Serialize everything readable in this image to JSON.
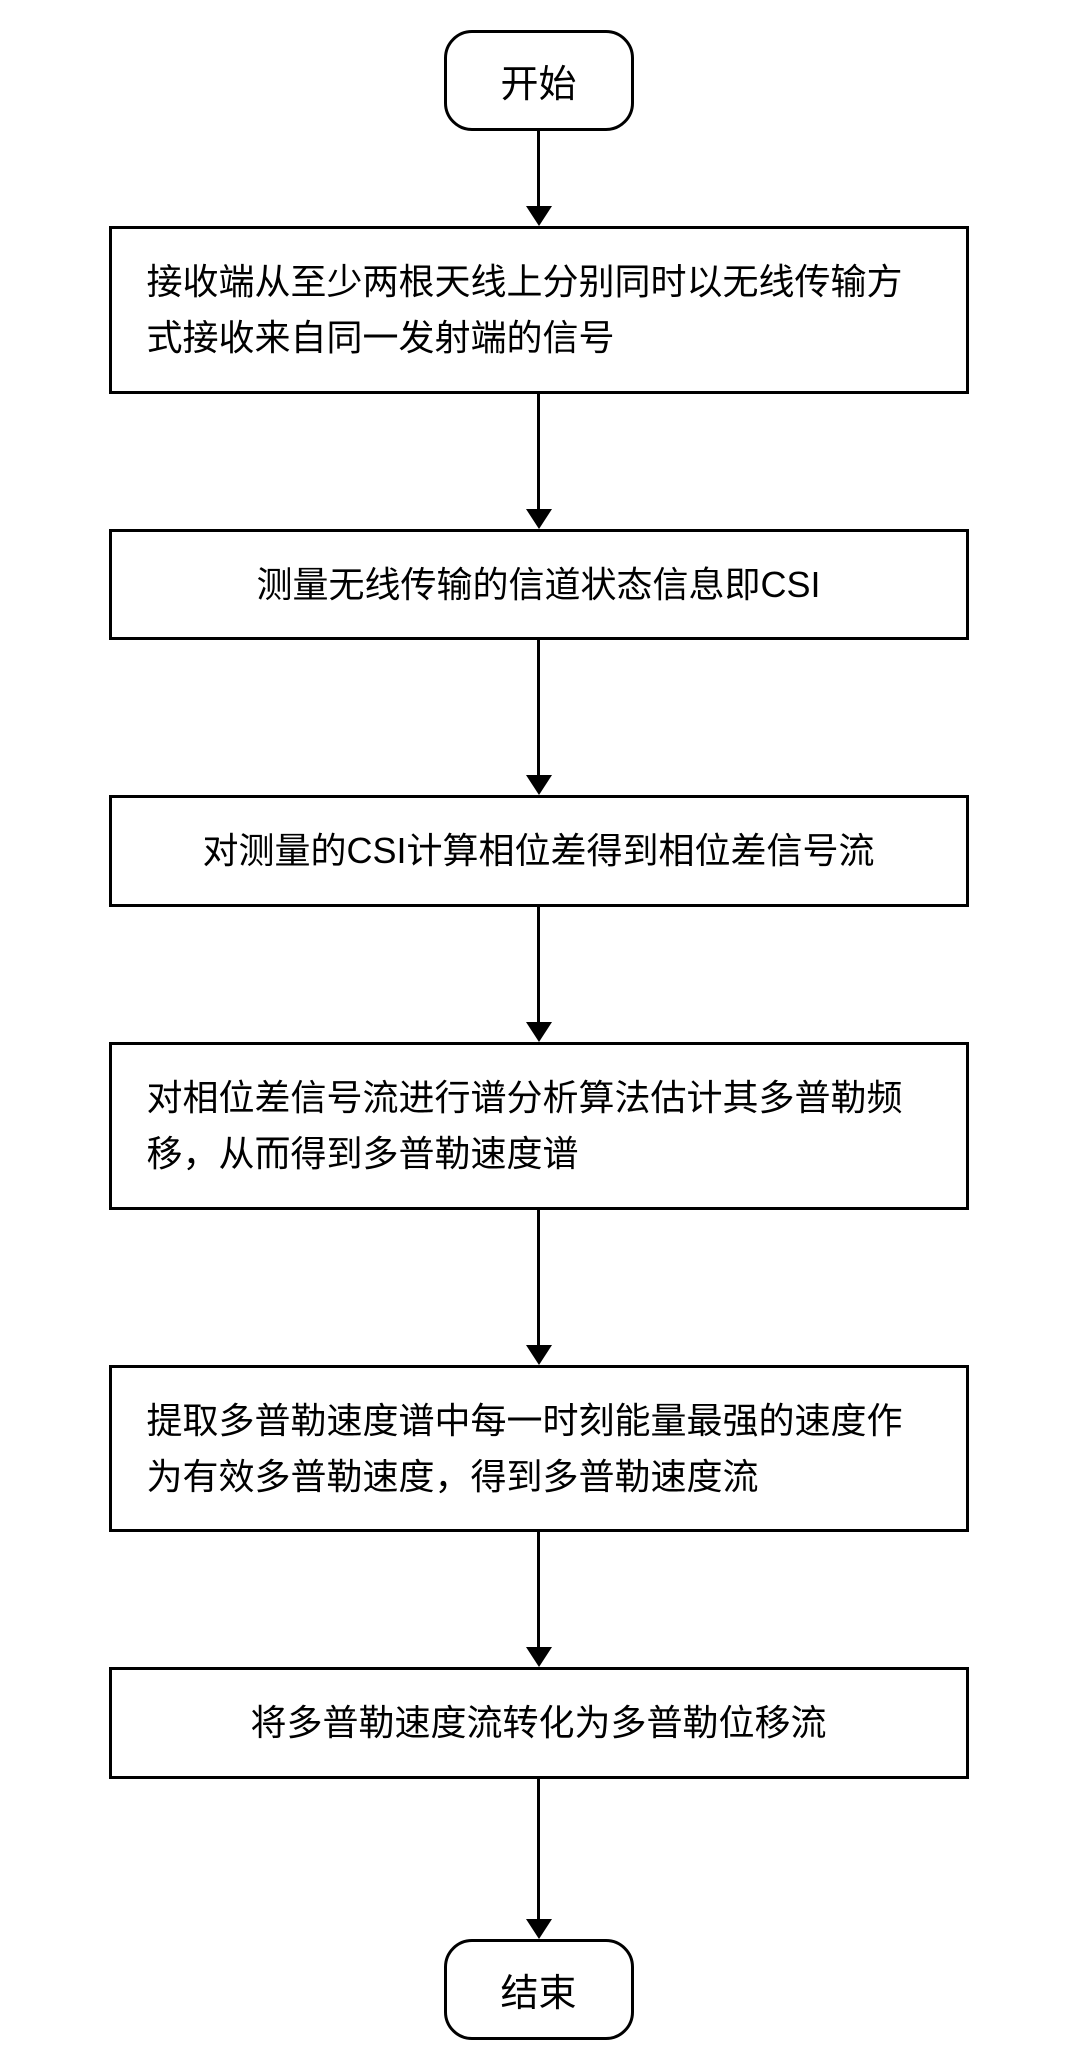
{
  "flowchart": {
    "type": "flowchart",
    "background_color": "#ffffff",
    "border_color": "#000000",
    "border_width": 3,
    "text_color": "#000000",
    "node_fontsize": 36,
    "terminal_fontsize": 38,
    "terminal_width": 190,
    "terminal_height": 90,
    "terminal_border_radius": 28,
    "process_width": 860,
    "arrow_line_width": 3,
    "arrow_head_width": 26,
    "arrow_head_height": 20,
    "nodes": [
      {
        "id": "start",
        "type": "terminal",
        "label": "开始"
      },
      {
        "id": "step1",
        "type": "process",
        "label": "接收端从至少两根天线上分别同时以无线传输方式接收来自同一发射端的信号"
      },
      {
        "id": "step2",
        "type": "process",
        "label": "测量无线传输的信道状态信息即CSI"
      },
      {
        "id": "step3",
        "type": "process",
        "label": "对测量的CSI计算相位差得到相位差信号流"
      },
      {
        "id": "step4",
        "type": "process",
        "label": "对相位差信号流进行谱分析算法估计其多普勒频移，从而得到多普勒速度谱"
      },
      {
        "id": "step5",
        "type": "process",
        "label": "提取多普勒速度谱中每一时刻能量最强的速度作为有效多普勒速度，得到多普勒速度流"
      },
      {
        "id": "step6",
        "type": "process",
        "label": "将多普勒速度流转化为多普勒位移流"
      },
      {
        "id": "end",
        "type": "terminal",
        "label": "结束"
      }
    ],
    "edges": [
      {
        "from": "start",
        "to": "step1",
        "length": 75
      },
      {
        "from": "step1",
        "to": "step2",
        "length": 115
      },
      {
        "from": "step2",
        "to": "step3",
        "length": 135
      },
      {
        "from": "step3",
        "to": "step4",
        "length": 115
      },
      {
        "from": "step4",
        "to": "step5",
        "length": 135
      },
      {
        "from": "step5",
        "to": "step6",
        "length": 115
      },
      {
        "from": "step6",
        "to": "end",
        "length": 140
      }
    ]
  }
}
